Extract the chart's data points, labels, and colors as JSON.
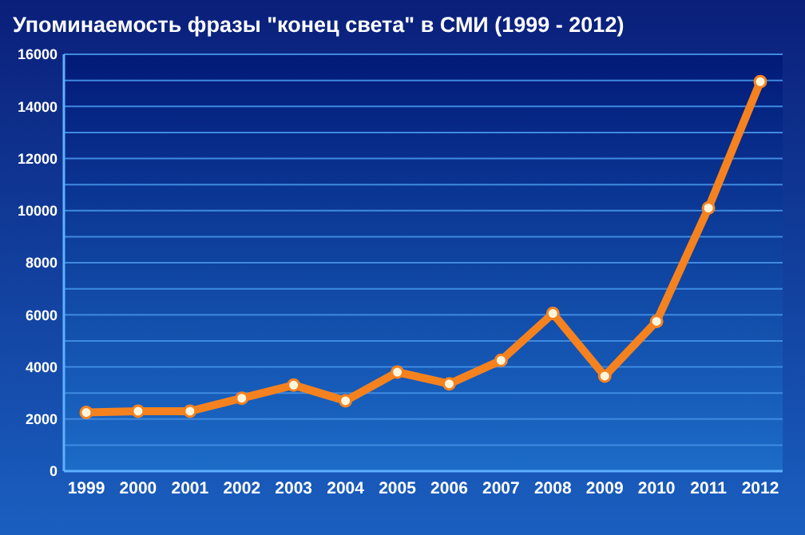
{
  "chart_data": {
    "type": "line",
    "title": "Упоминаемость фразы \"конец света\" в СМИ (1999 - 2012)",
    "categories": [
      "1999",
      "2000",
      "2001",
      "2002",
      "2003",
      "2004",
      "2005",
      "2006",
      "2007",
      "2008",
      "2009",
      "2010",
      "2011",
      "2012"
    ],
    "series": [
      {
        "color": "#f5821f",
        "values": [
          2250,
          2300,
          2300,
          2800,
          3300,
          2700,
          3800,
          3350,
          4250,
          6050,
          3650,
          5750,
          10100,
          14950
        ]
      }
    ],
    "ylim": [
      0,
      16000
    ],
    "yticks": [
      0,
      {
        "value": 1000,
        "label": null
      },
      2000,
      {
        "value": 3000,
        "label": null
      },
      4000,
      {
        "value": 5000,
        "label": null
      },
      6000,
      {
        "value": 7000,
        "label": null
      },
      8000,
      {
        "value": 9000,
        "label": null
      },
      10000,
      {
        "value": 11000,
        "label": null
      },
      12000,
      {
        "value": 13000,
        "label": null
      },
      14000,
      {
        "value": 15000,
        "label": null
      },
      16000
    ],
    "grid": "y",
    "marker": "circle",
    "line_style": "solid"
  }
}
